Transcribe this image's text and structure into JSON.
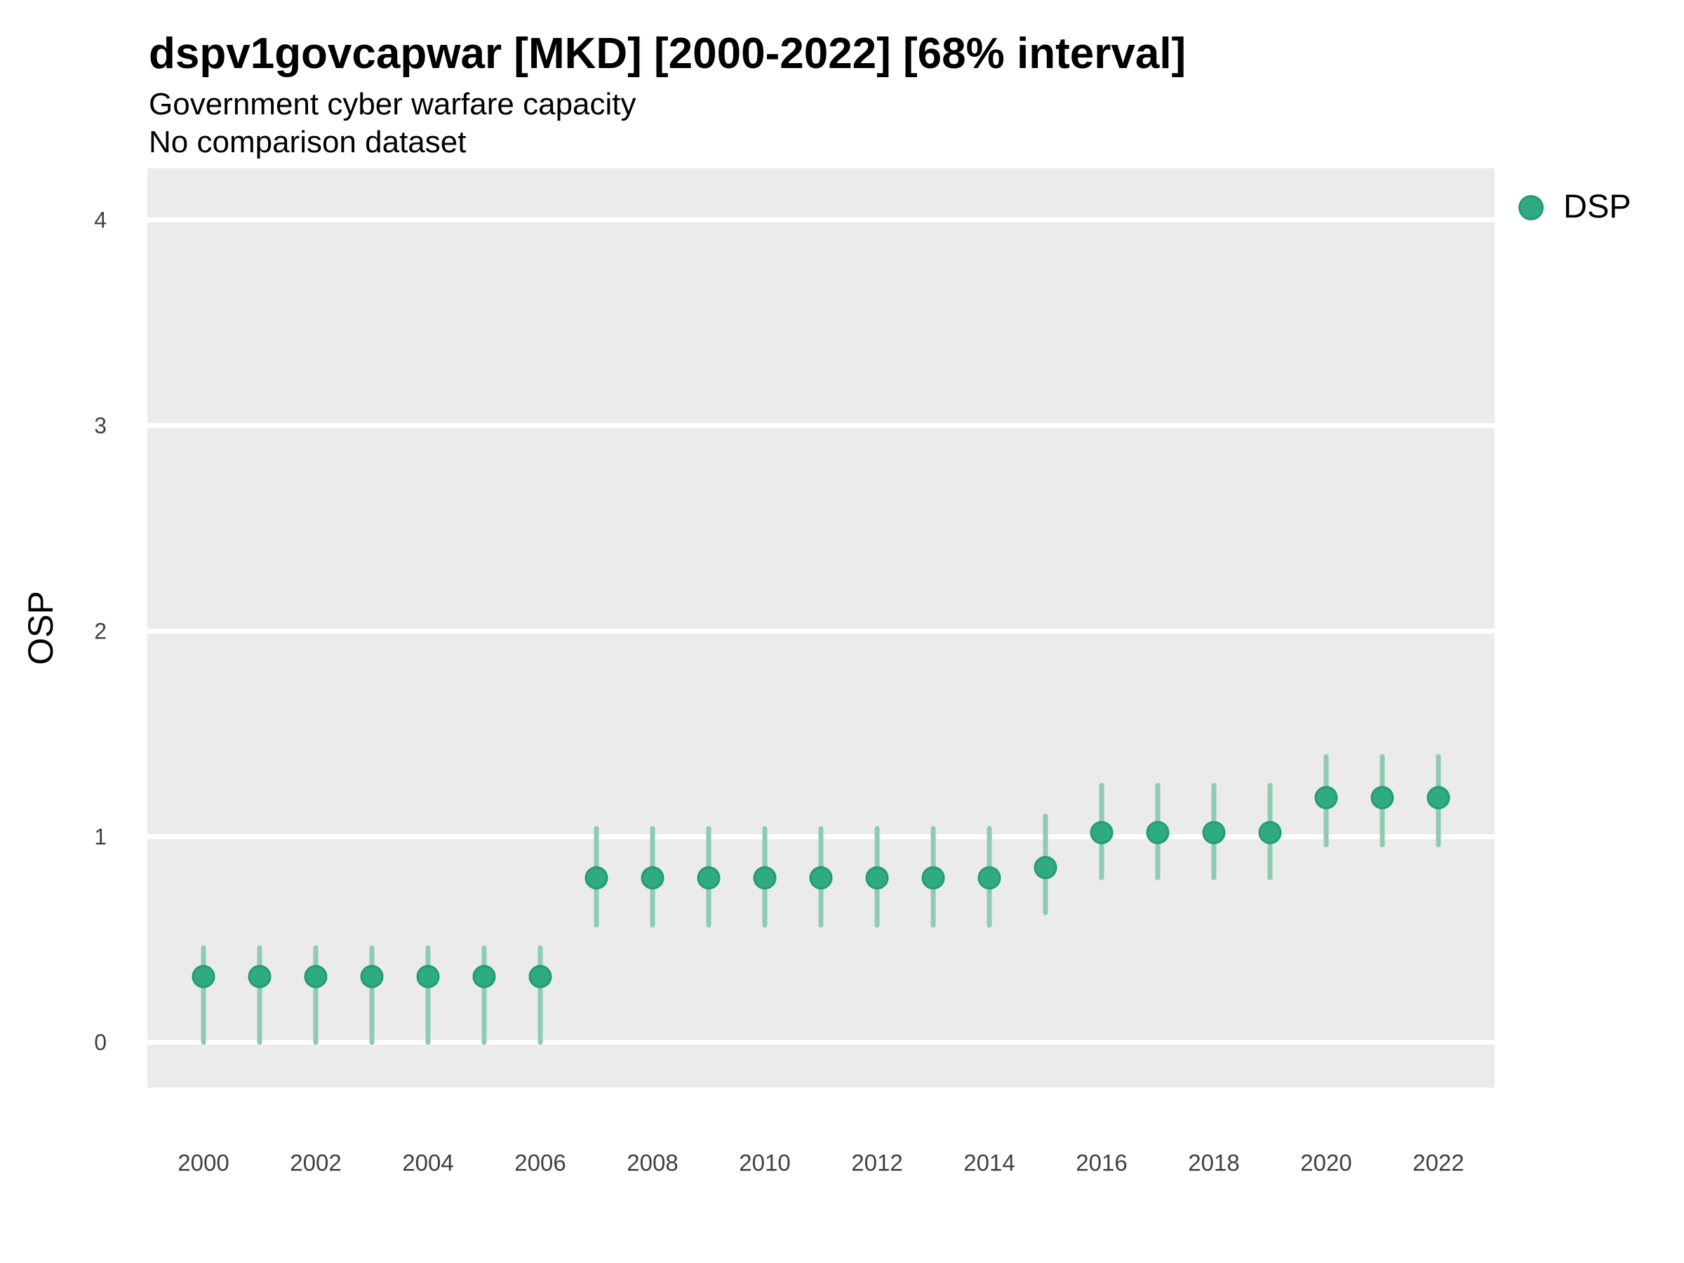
{
  "header": {
    "title": "dspv1govcapwar [MKD] [2000-2022] [68% interval]",
    "subtitle1": "Government cyber warfare capacity",
    "subtitle2": "No comparison dataset"
  },
  "axes": {
    "y_label": "OSP",
    "x_label": ""
  },
  "legend": {
    "position": "right",
    "items": [
      {
        "label": "DSP",
        "color": "#2FAB84"
      }
    ]
  },
  "colors": {
    "panel_bg": "#EBEBEB",
    "grid": "#FFFFFF",
    "point_fill": "#2FAB84",
    "point_stroke": "#249B73",
    "interval_line": "#8FCBB1",
    "title_text": "#000000",
    "tick_text": "#404040"
  },
  "chart_data": {
    "type": "scatter",
    "title": "dspv1govcapwar [MKD] [2000-2022] [68% interval]",
    "subtitle": "Government cyber warfare capacity",
    "note": "No comparison dataset",
    "interval": "68% interval",
    "xlabel": "",
    "ylabel": "OSP",
    "grid": true,
    "legend_position": "right",
    "x_ticks": [
      2000,
      2002,
      2004,
      2006,
      2008,
      2010,
      2012,
      2014,
      2016,
      2018,
      2020,
      2022
    ],
    "y_ticks": [
      0,
      1,
      2,
      3,
      4
    ],
    "xlim": [
      1999,
      2023
    ],
    "ylim": [
      -0.22,
      4.25
    ],
    "series": [
      {
        "name": "DSP",
        "x": [
          2000,
          2001,
          2002,
          2003,
          2004,
          2005,
          2006,
          2007,
          2008,
          2009,
          2010,
          2011,
          2012,
          2013,
          2014,
          2015,
          2016,
          2017,
          2018,
          2019,
          2020,
          2021,
          2022
        ],
        "y": [
          0.32,
          0.32,
          0.32,
          0.32,
          0.32,
          0.32,
          0.32,
          0.8,
          0.8,
          0.8,
          0.8,
          0.8,
          0.8,
          0.8,
          0.8,
          0.85,
          1.02,
          1.02,
          1.02,
          1.02,
          1.19,
          1.19,
          1.19
        ],
        "y_lo": [
          0.0,
          0.0,
          0.0,
          0.0,
          0.0,
          0.0,
          0.0,
          0.57,
          0.57,
          0.57,
          0.57,
          0.57,
          0.57,
          0.57,
          0.57,
          0.63,
          0.8,
          0.8,
          0.8,
          0.8,
          0.96,
          0.96,
          0.96
        ],
        "y_hi": [
          0.46,
          0.46,
          0.46,
          0.46,
          0.46,
          0.46,
          0.46,
          1.04,
          1.04,
          1.04,
          1.04,
          1.04,
          1.04,
          1.04,
          1.04,
          1.1,
          1.25,
          1.25,
          1.25,
          1.25,
          1.39,
          1.39,
          1.39
        ]
      }
    ]
  }
}
